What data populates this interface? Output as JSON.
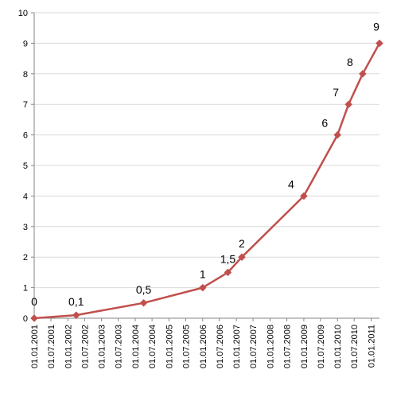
{
  "chart_data": {
    "type": "line",
    "title": "",
    "xlabel": "",
    "ylabel": "",
    "ylim": [
      0,
      10
    ],
    "y_ticks": [
      "0",
      "1",
      "2",
      "3",
      "4",
      "5",
      "6",
      "7",
      "8",
      "9",
      "10"
    ],
    "x_tick_labels": [
      "01.01.2001",
      "01.07.2001",
      "01.01.2002",
      "01.07.2002",
      "01.01.2003",
      "01.07.2003",
      "01.01.2004",
      "01.07.2004",
      "01.01.2005",
      "01.07.2005",
      "01.01.2006",
      "01.07.2006",
      "01.01.2007",
      "01.07.2007",
      "01.01.2008",
      "01.07.2008",
      "01.01.2009",
      "01.07.2009",
      "01.01.2010",
      "01.07.2010",
      "01.01.2011"
    ],
    "x_range": [
      "2001-01-01",
      "2011-04-01"
    ],
    "grid": "horizontal",
    "legend": "none",
    "series": [
      {
        "color": "#C0504D",
        "marker": "diamond",
        "points": [
          {
            "x": "2001-01-01",
            "y": 0,
            "label": "0"
          },
          {
            "x": "2002-04-01",
            "y": 0.1,
            "label": "0,1"
          },
          {
            "x": "2004-04-01",
            "y": 0.5,
            "label": "0,5"
          },
          {
            "x": "2006-01-01",
            "y": 1,
            "label": "1"
          },
          {
            "x": "2006-10-01",
            "y": 1.5,
            "label": "1,5"
          },
          {
            "x": "2007-03-01",
            "y": 2,
            "label": "2"
          },
          {
            "x": "2009-01-01",
            "y": 4,
            "label": "4"
          },
          {
            "x": "2010-01-01",
            "y": 6,
            "label": "6"
          },
          {
            "x": "2010-05-01",
            "y": 7,
            "label": "7"
          },
          {
            "x": "2010-10-01",
            "y": 8,
            "label": "8"
          },
          {
            "x": "2011-04-01",
            "y": 9,
            "label": "9"
          }
        ]
      }
    ],
    "colors": {
      "grid": "#D9D9D9",
      "axis": "#868686",
      "text": "#000000"
    }
  }
}
